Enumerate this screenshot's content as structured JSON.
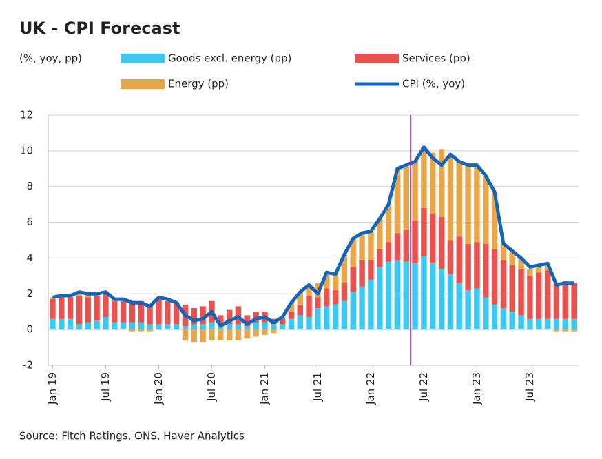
{
  "chart_data": {
    "type": "stacked-bar-line",
    "title": "UK - CPI Forecast",
    "unit_label": "(%, yoy, pp)",
    "source": "Source: Fitch Ratings, ONS, Haver Analytics",
    "categories": [
      "Jan 19",
      null,
      null,
      null,
      null,
      null,
      "Jul 19",
      null,
      null,
      null,
      null,
      null,
      "Jan 20",
      null,
      null,
      null,
      null,
      null,
      "Jul 20",
      null,
      null,
      null,
      null,
      null,
      "Jan 21",
      null,
      null,
      null,
      null,
      null,
      "Jul 21",
      null,
      null,
      null,
      null,
      null,
      "Jan 22",
      null,
      null,
      null,
      null,
      null,
      "Jul 22",
      null,
      null,
      null,
      null,
      null,
      "Jan 23",
      null,
      null,
      null,
      null,
      null,
      "Jul 23",
      null,
      null,
      null,
      null,
      null
    ],
    "series": [
      {
        "name": "Goods excl. energy (pp)",
        "color": "#3cc8f0",
        "kind": "bar",
        "values": [
          0.6,
          0.6,
          0.6,
          0.3,
          0.4,
          0.5,
          0.7,
          0.4,
          0.4,
          0.4,
          0.4,
          0.3,
          0.3,
          0.3,
          0.3,
          0.2,
          0.3,
          0.3,
          0.4,
          0.2,
          0.3,
          0.3,
          0.2,
          0.4,
          0.4,
          0.3,
          0.3,
          0.6,
          0.8,
          0.7,
          1.2,
          1.3,
          1.4,
          1.6,
          2.1,
          2.4,
          2.8,
          3.5,
          3.8,
          3.9,
          3.8,
          3.7,
          4.1,
          3.7,
          3.4,
          3.1,
          2.6,
          2.2,
          2.3,
          1.8,
          1.4,
          1.2,
          1.0,
          0.8,
          0.6,
          0.6,
          0.6,
          0.6,
          0.6,
          0.6
        ]
      },
      {
        "name": "Services (pp)",
        "color": "#e8534f",
        "kind": "bar",
        "values": [
          1.1,
          1.2,
          1.2,
          1.6,
          1.4,
          1.4,
          1.3,
          1.2,
          1.2,
          1.2,
          1.2,
          1.1,
          1.4,
          1.3,
          1.2,
          1.2,
          0.9,
          1.0,
          1.2,
          0.6,
          0.8,
          1.0,
          0.6,
          0.6,
          0.6,
          0.3,
          0.3,
          0.4,
          0.6,
          1.2,
          0.6,
          1.0,
          0.8,
          1.0,
          1.4,
          1.5,
          1.1,
          1.0,
          1.1,
          1.5,
          1.8,
          2.4,
          2.7,
          2.8,
          2.9,
          1.9,
          2.6,
          2.6,
          2.6,
          3.0,
          3.1,
          2.7,
          2.6,
          2.6,
          2.4,
          2.6,
          2.7,
          2.0,
          2.1,
          2.0
        ]
      },
      {
        "name": "Energy (pp)",
        "color": "#e8a64a",
        "kind": "bar",
        "values": [
          0.1,
          0.1,
          0.1,
          0.2,
          0.2,
          0.1,
          0.1,
          0.1,
          0.1,
          -0.1,
          -0.1,
          -0.1,
          0.1,
          0.1,
          0.0,
          -0.6,
          -0.7,
          -0.7,
          -0.6,
          -0.6,
          -0.6,
          -0.6,
          -0.5,
          -0.4,
          -0.3,
          -0.2,
          0.1,
          0.5,
          0.7,
          0.6,
          0.8,
          0.9,
          0.9,
          1.6,
          1.6,
          1.5,
          1.6,
          1.7,
          2.1,
          3.6,
          3.5,
          3.3,
          3.4,
          3.4,
          3.8,
          4.8,
          4.2,
          4.4,
          4.3,
          3.8,
          3.2,
          0.9,
          0.8,
          0.6,
          0.4,
          0.3,
          0.4,
          -0.1,
          -0.1,
          -0.1
        ]
      },
      {
        "name": "CPI (%, yoy)",
        "color": "#1565b8",
        "kind": "line",
        "values": [
          1.8,
          1.9,
          1.9,
          2.1,
          2.0,
          2.0,
          2.1,
          1.7,
          1.7,
          1.5,
          1.5,
          1.3,
          1.8,
          1.7,
          1.5,
          0.8,
          0.5,
          0.6,
          1.0,
          0.2,
          0.5,
          0.7,
          0.3,
          0.6,
          0.7,
          0.4,
          0.7,
          1.5,
          2.1,
          2.5,
          2.0,
          3.2,
          3.1,
          4.2,
          5.1,
          5.4,
          5.5,
          6.2,
          7.0,
          9.0,
          9.2,
          9.4,
          10.2,
          9.6,
          9.2,
          9.8,
          9.4,
          9.2,
          9.2,
          8.6,
          7.7,
          4.8,
          4.4,
          4.0,
          3.5,
          3.6,
          3.7,
          2.5,
          2.6,
          2.6
        ]
      }
    ],
    "ylim": [
      -2,
      12
    ],
    "yticks": [
      -2,
      0,
      2,
      4,
      6,
      8,
      10,
      12
    ],
    "grid": true
  }
}
